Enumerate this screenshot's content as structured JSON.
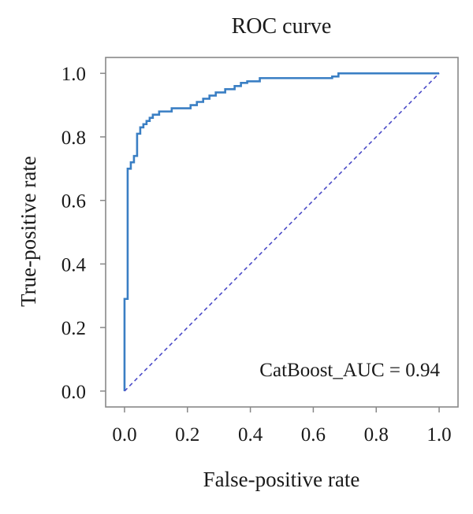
{
  "chart_data": {
    "type": "line",
    "title": "ROC curve",
    "xlabel": "False-positive rate",
    "ylabel": "True-positive rate",
    "xlim": [
      -0.06,
      1.06
    ],
    "ylim": [
      -0.05,
      1.05
    ],
    "x_ticks": [
      "0.0",
      "0.2",
      "0.4",
      "0.6",
      "0.8",
      "1.0"
    ],
    "y_ticks": [
      "0.0",
      "0.2",
      "0.4",
      "0.6",
      "0.8",
      "1.0"
    ],
    "annotation": "CatBoost_AUC = 0.94",
    "grid": false,
    "colors": {
      "roc": "#3a7fc4",
      "diagonal": "#4b4bc8",
      "frame": "#888888"
    },
    "series": [
      {
        "style": "solid",
        "x": [
          0.0,
          0.0,
          0.01,
          0.01,
          0.02,
          0.02,
          0.03,
          0.03,
          0.04,
          0.04,
          0.05,
          0.05,
          0.06,
          0.06,
          0.07,
          0.07,
          0.08,
          0.08,
          0.09,
          0.09,
          0.11,
          0.11,
          0.15,
          0.15,
          0.21,
          0.21,
          0.23,
          0.23,
          0.25,
          0.25,
          0.27,
          0.27,
          0.29,
          0.29,
          0.32,
          0.32,
          0.35,
          0.35,
          0.37,
          0.37,
          0.39,
          0.39,
          0.43,
          0.43,
          0.66,
          0.66,
          0.68,
          0.68,
          1.0
        ],
        "y": [
          0.0,
          0.29,
          0.29,
          0.7,
          0.7,
          0.72,
          0.72,
          0.74,
          0.74,
          0.81,
          0.81,
          0.83,
          0.83,
          0.84,
          0.84,
          0.85,
          0.85,
          0.86,
          0.86,
          0.87,
          0.87,
          0.88,
          0.88,
          0.89,
          0.89,
          0.9,
          0.9,
          0.91,
          0.91,
          0.92,
          0.92,
          0.93,
          0.93,
          0.94,
          0.94,
          0.95,
          0.95,
          0.96,
          0.96,
          0.97,
          0.97,
          0.975,
          0.975,
          0.985,
          0.985,
          0.99,
          0.99,
          1.0,
          1.0
        ]
      },
      {
        "style": "dashed",
        "x": [
          0.0,
          1.0
        ],
        "y": [
          0.0,
          1.0
        ]
      }
    ]
  }
}
